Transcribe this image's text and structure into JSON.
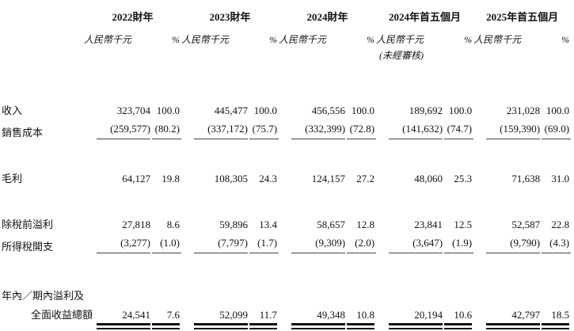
{
  "table": {
    "name": "financial-summary-table",
    "colors": {
      "text": "#111111",
      "rule_single": "#444444",
      "rule_double": "#111111",
      "background": "#ffffff"
    },
    "column_groups": [
      {
        "year": "2022財年",
        "unit": "人民幣千元",
        "pct": "%",
        "note": ""
      },
      {
        "year": "2023財年",
        "unit": "人民幣千元",
        "pct": "%",
        "note": ""
      },
      {
        "year": "2024財年",
        "unit": "人民幣千元",
        "pct": "%",
        "note": ""
      },
      {
        "year": "2024年首五個月",
        "unit": "人民幣千元",
        "pct": "%",
        "note": "(未經審核)"
      },
      {
        "year": "2025年首五個月",
        "unit": "人民幣千元",
        "pct": "%",
        "note": ""
      }
    ],
    "rows": [
      {
        "label": "收入",
        "indent": false,
        "rule": "none",
        "cells": [
          "323,704",
          "100.0",
          "445,477",
          "100.0",
          "456,556",
          "100.0",
          "189,692",
          "100.0",
          "231,028",
          "100.0"
        ]
      },
      {
        "label": "銷售成本",
        "indent": false,
        "rule": "single",
        "cells": [
          "(259,577)",
          "(80.2)",
          "(337,172)",
          "(75.7)",
          "(332,399)",
          "(72.8)",
          "(141,632)",
          "(74.7)",
          "(159,390)",
          "(69.0)"
        ]
      },
      {
        "label": "毛利",
        "indent": false,
        "rule": "none",
        "cells": [
          "64,127",
          "19.8",
          "108,305",
          "24.3",
          "124,157",
          "27.2",
          "48,060",
          "25.3",
          "71,638",
          "31.0"
        ]
      },
      {
        "label": "除稅前溢利",
        "indent": false,
        "rule": "none",
        "cells": [
          "27,818",
          "8.6",
          "59,896",
          "13.4",
          "58,657",
          "12.8",
          "23,841",
          "12.5",
          "52,587",
          "22.8"
        ]
      },
      {
        "label": "所得稅開支",
        "indent": false,
        "rule": "single",
        "cells": [
          "(3,277)",
          "(1.0)",
          "(7,797)",
          "(1.7)",
          "(9,309)",
          "(2.0)",
          "(3,647)",
          "(1.9)",
          "(9,790)",
          "(4.3)"
        ]
      },
      {
        "label": "年內／期內溢利及",
        "indent": false,
        "rule": "none",
        "cells": []
      },
      {
        "label": "全面收益總額",
        "indent": true,
        "rule": "double",
        "cells": [
          "24,541",
          "7.6",
          "52,099",
          "11.7",
          "49,348",
          "10.8",
          "20,194",
          "10.6",
          "42,797",
          "18.5"
        ]
      }
    ]
  }
}
